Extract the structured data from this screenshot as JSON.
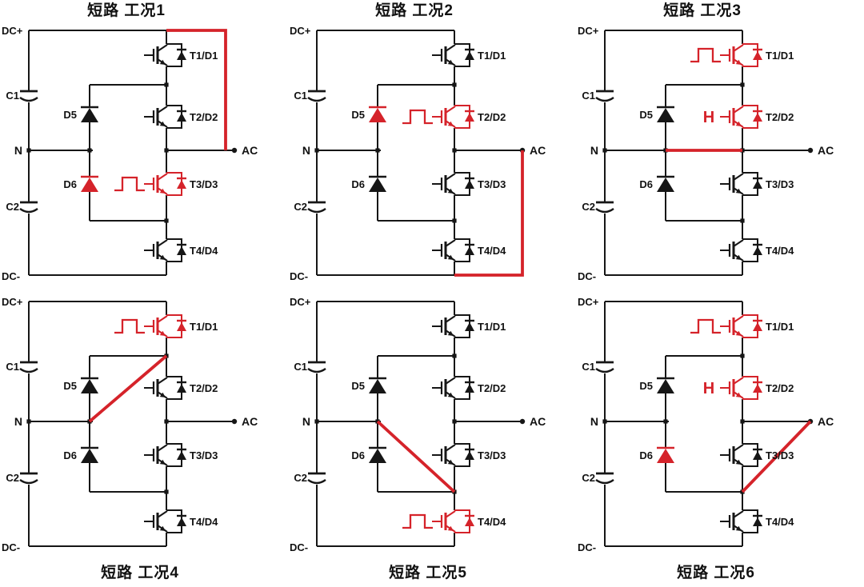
{
  "figure": {
    "description_domain": "power-electronics schematic, six short-circuit conditions of a three-level NPC inverter leg",
    "background": "#ffffff"
  },
  "colors": {
    "wire": "#161616",
    "highlight": "#d5232a",
    "label": "#111111"
  },
  "labels": {
    "dc_plus": "DC+",
    "dc_minus": "DC-",
    "neutral": "N",
    "ac": "AC",
    "c1": "C1",
    "c2": "C2",
    "d5": "D5",
    "d6": "D6",
    "t1": "T1/D1",
    "t2": "T2/D2",
    "t3": "T3/D3",
    "t4": "T4/D4"
  },
  "markers": {
    "h": "H"
  },
  "panels": [
    {
      "title": "短路 工况1",
      "title_position": "top",
      "red_devices": [
        "D6",
        "T3"
      ],
      "pulse_at": "T3",
      "h_at": null,
      "short_between": "DC+ rail to AC terminal (external wire over top-right corner)",
      "short_path_points": [
        [
          208,
          10
        ],
        [
          282,
          10
        ],
        [
          282,
          160
        ]
      ]
    },
    {
      "title": "短路 工况2",
      "title_position": "top",
      "red_devices": [
        "D5",
        "T2"
      ],
      "pulse_at": "T2",
      "h_at": null,
      "short_between": "AC terminal to DC- rail (external wire down right side)",
      "short_path_points": [
        [
          293,
          160
        ],
        [
          293,
          316
        ],
        [
          208,
          316
        ]
      ]
    },
    {
      "title": "短路 工况3",
      "title_position": "top",
      "red_devices": [
        "T1",
        "T2"
      ],
      "pulse_at": "T1",
      "h_at": "T2",
      "short_between": "Neutral point N to AC midpoint (horizontal bridge)",
      "short_path_points": [
        [
          112,
          160
        ],
        [
          208,
          160
        ]
      ]
    },
    {
      "title": "短路 工况4",
      "title_position": "bottom",
      "red_devices": [
        "T1"
      ],
      "pulse_at": "T1",
      "h_at": null,
      "short_between": "Neutral point N to T1/T2 junction (diagonal)",
      "short_path_points": [
        [
          112,
          160
        ],
        [
          208,
          78
        ]
      ]
    },
    {
      "title": "短路 工况5",
      "title_position": "bottom",
      "red_devices": [
        "T4"
      ],
      "pulse_at": "T4",
      "h_at": null,
      "short_between": "Neutral point N to T3/T4 junction (diagonal)",
      "short_path_points": [
        [
          112,
          160
        ],
        [
          208,
          248
        ]
      ]
    },
    {
      "title": "短路 工况6",
      "title_position": "bottom",
      "red_devices": [
        "T1",
        "T2",
        "D6"
      ],
      "pulse_at": "T1",
      "h_at": "T2",
      "short_between": "T3/T4 junction to AC terminal (diagonal)",
      "short_path_points": [
        [
          208,
          248
        ],
        [
          293,
          160
        ]
      ]
    }
  ]
}
